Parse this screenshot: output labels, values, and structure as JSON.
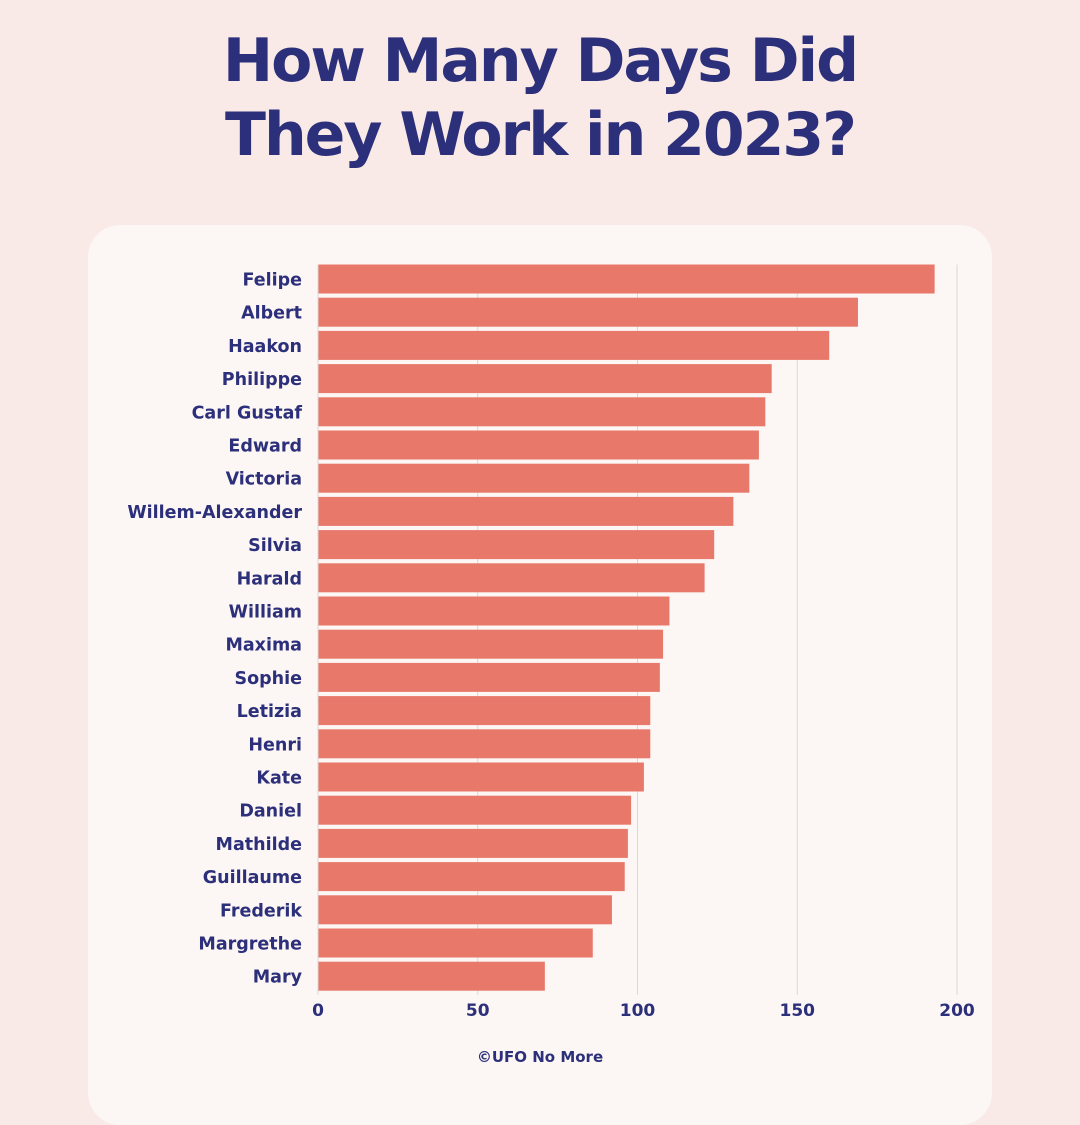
{
  "title": {
    "line1": "How Many Days Did",
    "line2": "They Work in 2023?"
  },
  "credit": "©UFO No More",
  "colors": {
    "bar": "#e8796a",
    "text": "#2c2f7a",
    "grid": "#dcd6d5",
    "background": "#f9eae7",
    "card": "#fcf6f4"
  },
  "chart_data": {
    "type": "bar",
    "orientation": "horizontal",
    "title": "How Many Days Did They Work in 2023?",
    "xlabel": "",
    "ylabel": "",
    "xlim": [
      0,
      200
    ],
    "xticks": [
      0,
      50,
      100,
      150,
      200
    ],
    "grid": true,
    "categories": [
      "Felipe",
      "Albert",
      "Haakon",
      "Philippe",
      "Carl Gustaf",
      "Edward",
      "Victoria",
      "Willem-Alexander",
      "Silvia",
      "Harald",
      "William",
      "Maxima",
      "Sophie",
      "Letizia",
      "Henri",
      "Kate",
      "Daniel",
      "Mathilde",
      "Guillaume",
      "Frederik",
      "Margrethe",
      "Mary"
    ],
    "values": [
      193,
      169,
      160,
      142,
      140,
      138,
      135,
      130,
      124,
      121,
      110,
      108,
      107,
      104,
      104,
      102,
      98,
      97,
      96,
      92,
      86,
      71
    ]
  }
}
